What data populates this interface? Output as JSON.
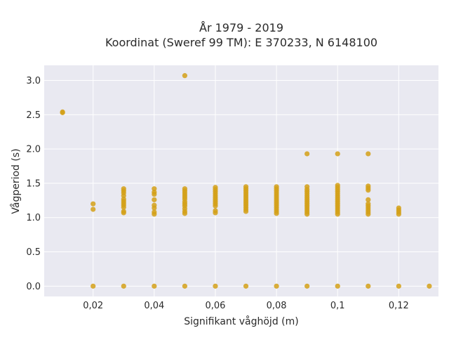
{
  "chart_data": {
    "type": "scatter",
    "title_lines": [
      "År 1979 - 2019",
      "Koordinat (Sweref 99 TM): E 370233, N 6148100"
    ],
    "xlabel": "Signifikant våghöjd (m)",
    "ylabel": "Vågperiod (s)",
    "xlim": [
      0.004,
      0.133
    ],
    "ylim": [
      -0.15,
      3.22
    ],
    "x_ticks": [
      0.02,
      0.04,
      0.06,
      0.08,
      0.1,
      0.12
    ],
    "x_tick_labels": [
      "0,02",
      "0,04",
      "0,06",
      "0,08",
      "0,1",
      "0,12"
    ],
    "y_ticks": [
      0,
      0.5,
      1,
      1.5,
      2,
      2.5,
      3
    ],
    "y_tick_labels": [
      "0.0",
      "0.5",
      "1.0",
      "1.5",
      "2.0",
      "2.5",
      "3.0"
    ],
    "grid": true,
    "colors": {
      "plot_background": "#e9e9f1",
      "grid": "#ffffff",
      "marker": "#d4a018"
    },
    "points": [
      {
        "x": 0.01,
        "y": 2.54
      },
      {
        "x": 0.01,
        "y": 2.53
      },
      {
        "x": 0.02,
        "y": 0.0
      },
      {
        "x": 0.02,
        "y": 1.12
      },
      {
        "x": 0.02,
        "y": 1.2
      },
      {
        "x": 0.03,
        "y": 0.0
      },
      {
        "x": 0.03,
        "y": 1.07
      },
      {
        "x": 0.03,
        "y": 1.09
      },
      {
        "x": 0.03,
        "y": 1.15
      },
      {
        "x": 0.03,
        "y": 1.18
      },
      {
        "x": 0.03,
        "y": 1.21
      },
      {
        "x": 0.03,
        "y": 1.24
      },
      {
        "x": 0.03,
        "y": 1.27
      },
      {
        "x": 0.03,
        "y": 1.32
      },
      {
        "x": 0.03,
        "y": 1.36
      },
      {
        "x": 0.03,
        "y": 1.39
      },
      {
        "x": 0.03,
        "y": 1.42
      },
      {
        "x": 0.04,
        "y": 0.0
      },
      {
        "x": 0.04,
        "y": 1.05
      },
      {
        "x": 0.04,
        "y": 1.08
      },
      {
        "x": 0.04,
        "y": 1.14
      },
      {
        "x": 0.04,
        "y": 1.18
      },
      {
        "x": 0.04,
        "y": 1.26
      },
      {
        "x": 0.04,
        "y": 1.34
      },
      {
        "x": 0.04,
        "y": 1.37
      },
      {
        "x": 0.04,
        "y": 1.42
      },
      {
        "x": 0.05,
        "y": 0.0
      },
      {
        "x": 0.05,
        "y": 1.06
      },
      {
        "x": 0.05,
        "y": 1.09
      },
      {
        "x": 0.05,
        "y": 1.13
      },
      {
        "x": 0.05,
        "y": 1.17
      },
      {
        "x": 0.05,
        "y": 1.2
      },
      {
        "x": 0.05,
        "y": 1.23
      },
      {
        "x": 0.05,
        "y": 1.27
      },
      {
        "x": 0.05,
        "y": 1.3
      },
      {
        "x": 0.05,
        "y": 1.33
      },
      {
        "x": 0.05,
        "y": 1.36
      },
      {
        "x": 0.05,
        "y": 1.39
      },
      {
        "x": 0.05,
        "y": 1.42
      },
      {
        "x": 0.05,
        "y": 3.07
      },
      {
        "x": 0.06,
        "y": 0.0
      },
      {
        "x": 0.06,
        "y": 1.07
      },
      {
        "x": 0.06,
        "y": 1.1
      },
      {
        "x": 0.06,
        "y": 1.17
      },
      {
        "x": 0.06,
        "y": 1.2
      },
      {
        "x": 0.06,
        "y": 1.23
      },
      {
        "x": 0.06,
        "y": 1.26
      },
      {
        "x": 0.06,
        "y": 1.29
      },
      {
        "x": 0.06,
        "y": 1.32
      },
      {
        "x": 0.06,
        "y": 1.35
      },
      {
        "x": 0.06,
        "y": 1.38
      },
      {
        "x": 0.06,
        "y": 1.41
      },
      {
        "x": 0.06,
        "y": 1.44
      },
      {
        "x": 0.07,
        "y": 0.0
      },
      {
        "x": 0.07,
        "y": 1.09
      },
      {
        "x": 0.07,
        "y": 1.12
      },
      {
        "x": 0.07,
        "y": 1.15
      },
      {
        "x": 0.07,
        "y": 1.18
      },
      {
        "x": 0.07,
        "y": 1.21
      },
      {
        "x": 0.07,
        "y": 1.24
      },
      {
        "x": 0.07,
        "y": 1.27
      },
      {
        "x": 0.07,
        "y": 1.3
      },
      {
        "x": 0.07,
        "y": 1.33
      },
      {
        "x": 0.07,
        "y": 1.36
      },
      {
        "x": 0.07,
        "y": 1.39
      },
      {
        "x": 0.07,
        "y": 1.42
      },
      {
        "x": 0.07,
        "y": 1.45
      },
      {
        "x": 0.08,
        "y": 0.0
      },
      {
        "x": 0.08,
        "y": 1.06
      },
      {
        "x": 0.08,
        "y": 1.09
      },
      {
        "x": 0.08,
        "y": 1.12
      },
      {
        "x": 0.08,
        "y": 1.15
      },
      {
        "x": 0.08,
        "y": 1.18
      },
      {
        "x": 0.08,
        "y": 1.21
      },
      {
        "x": 0.08,
        "y": 1.24
      },
      {
        "x": 0.08,
        "y": 1.27
      },
      {
        "x": 0.08,
        "y": 1.3
      },
      {
        "x": 0.08,
        "y": 1.33
      },
      {
        "x": 0.08,
        "y": 1.36
      },
      {
        "x": 0.08,
        "y": 1.39
      },
      {
        "x": 0.08,
        "y": 1.42
      },
      {
        "x": 0.08,
        "y": 1.45
      },
      {
        "x": 0.09,
        "y": 0.0
      },
      {
        "x": 0.09,
        "y": 1.05
      },
      {
        "x": 0.09,
        "y": 1.08
      },
      {
        "x": 0.09,
        "y": 1.11
      },
      {
        "x": 0.09,
        "y": 1.14
      },
      {
        "x": 0.09,
        "y": 1.17
      },
      {
        "x": 0.09,
        "y": 1.2
      },
      {
        "x": 0.09,
        "y": 1.23
      },
      {
        "x": 0.09,
        "y": 1.26
      },
      {
        "x": 0.09,
        "y": 1.29
      },
      {
        "x": 0.09,
        "y": 1.32
      },
      {
        "x": 0.09,
        "y": 1.35
      },
      {
        "x": 0.09,
        "y": 1.38
      },
      {
        "x": 0.09,
        "y": 1.41
      },
      {
        "x": 0.09,
        "y": 1.45
      },
      {
        "x": 0.09,
        "y": 1.93
      },
      {
        "x": 0.1,
        "y": 0.0
      },
      {
        "x": 0.1,
        "y": 1.05
      },
      {
        "x": 0.1,
        "y": 1.08
      },
      {
        "x": 0.1,
        "y": 1.11
      },
      {
        "x": 0.1,
        "y": 1.14
      },
      {
        "x": 0.1,
        "y": 1.17
      },
      {
        "x": 0.1,
        "y": 1.2
      },
      {
        "x": 0.1,
        "y": 1.23
      },
      {
        "x": 0.1,
        "y": 1.26
      },
      {
        "x": 0.1,
        "y": 1.29
      },
      {
        "x": 0.1,
        "y": 1.32
      },
      {
        "x": 0.1,
        "y": 1.35
      },
      {
        "x": 0.1,
        "y": 1.38
      },
      {
        "x": 0.1,
        "y": 1.41
      },
      {
        "x": 0.1,
        "y": 1.44
      },
      {
        "x": 0.1,
        "y": 1.47
      },
      {
        "x": 0.1,
        "y": 1.93
      },
      {
        "x": 0.11,
        "y": 0.0
      },
      {
        "x": 0.11,
        "y": 1.05
      },
      {
        "x": 0.11,
        "y": 1.08
      },
      {
        "x": 0.11,
        "y": 1.11
      },
      {
        "x": 0.11,
        "y": 1.14
      },
      {
        "x": 0.11,
        "y": 1.17
      },
      {
        "x": 0.11,
        "y": 1.2
      },
      {
        "x": 0.11,
        "y": 1.26
      },
      {
        "x": 0.11,
        "y": 1.4
      },
      {
        "x": 0.11,
        "y": 1.43
      },
      {
        "x": 0.11,
        "y": 1.46
      },
      {
        "x": 0.11,
        "y": 1.93
      },
      {
        "x": 0.12,
        "y": 0.0
      },
      {
        "x": 0.12,
        "y": 1.05
      },
      {
        "x": 0.12,
        "y": 1.08
      },
      {
        "x": 0.12,
        "y": 1.11
      },
      {
        "x": 0.12,
        "y": 1.14
      },
      {
        "x": 0.13,
        "y": 0.0
      }
    ]
  }
}
